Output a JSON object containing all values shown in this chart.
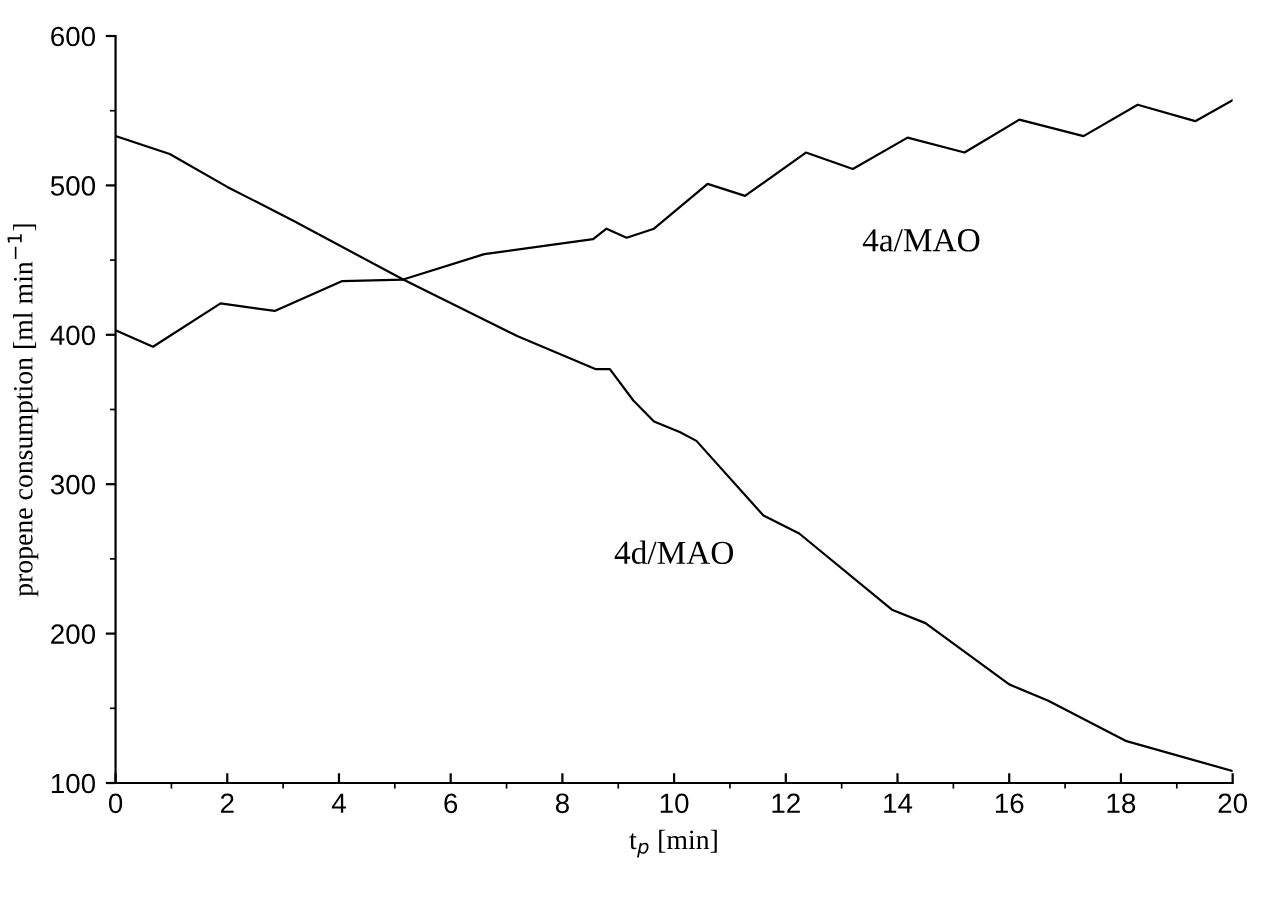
{
  "chart_data": {
    "type": "line",
    "xlabel": "t$_{p}$ [min]",
    "ylabel": "propene consumption [ml min$^{−1}$]",
    "xlim": [
      0,
      20
    ],
    "ylim": [
      100,
      600
    ],
    "xticks": [
      0,
      2,
      4,
      6,
      8,
      10,
      12,
      14,
      16,
      18,
      20
    ],
    "yticks": [
      100,
      200,
      300,
      400,
      500,
      600
    ],
    "grid": false,
    "legend": false,
    "marker": "none",
    "line_style": "solid",
    "series": [
      {
        "name": "4a/MAO",
        "color": "#000000",
        "x": [
          0,
          0.67,
          1.88,
          2.85,
          4.06,
          5.15,
          6.6,
          8.55,
          8.79,
          9.15,
          9.64,
          10.6,
          11.27,
          12.36,
          13.2,
          14.18,
          15.2,
          16.18,
          17.33,
          18.3,
          19.33,
          20
        ],
        "values": [
          403,
          392,
          421,
          416,
          436,
          437,
          454,
          464,
          471,
          465,
          471,
          501,
          493,
          522,
          511,
          532,
          522,
          544,
          533,
          554,
          543,
          557
        ]
      },
      {
        "name": "4d/MAO",
        "color": "#000000",
        "x": [
          0,
          0.97,
          2,
          3.2,
          5.15,
          7.2,
          8.6,
          8.85,
          9.27,
          9.64,
          10.1,
          10.4,
          11.6,
          12.24,
          13.9,
          14.5,
          16,
          16.7,
          18.1,
          20
        ],
        "values": [
          533,
          521,
          499,
          476,
          437,
          399,
          377,
          377,
          356,
          342,
          335,
          329,
          279,
          267,
          216,
          207,
          166,
          155,
          128,
          108
        ]
      }
    ]
  }
}
